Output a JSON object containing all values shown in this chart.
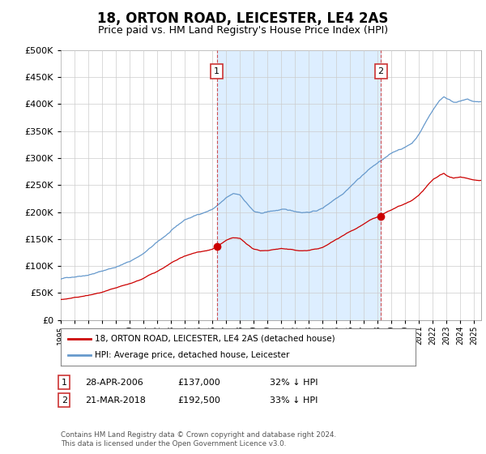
{
  "title": "18, ORTON ROAD, LEICESTER, LE4 2AS",
  "subtitle": "Price paid vs. HM Land Registry's House Price Index (HPI)",
  "title_fontsize": 12,
  "subtitle_fontsize": 9,
  "ylabel_values": [
    0,
    50000,
    100000,
    150000,
    200000,
    250000,
    300000,
    350000,
    400000,
    450000,
    500000
  ],
  "ylim": [
    0,
    500000
  ],
  "xlim_start": 1995.0,
  "xlim_end": 2025.5,
  "xtick_years": [
    1995,
    1996,
    1997,
    1998,
    1999,
    2000,
    2001,
    2002,
    2003,
    2004,
    2005,
    2006,
    2007,
    2008,
    2009,
    2010,
    2011,
    2012,
    2013,
    2014,
    2015,
    2016,
    2017,
    2018,
    2019,
    2020,
    2021,
    2022,
    2023,
    2024,
    2025
  ],
  "legend_entries": [
    "18, ORTON ROAD, LEICESTER, LE4 2AS (detached house)",
    "HPI: Average price, detached house, Leicester"
  ],
  "sale1_year": 2006.32,
  "sale1_price": 137000,
  "sale1_label": "1",
  "sale2_year": 2018.22,
  "sale2_price": 192500,
  "sale2_label": "2",
  "red_color": "#cc0000",
  "blue_color": "#6699cc",
  "shade_color": "#ddeeff",
  "vline_color": "#cc3333",
  "grid_color": "#cccccc",
  "bg_color": "#ffffff",
  "footer_text": "Contains HM Land Registry data © Crown copyright and database right 2024.\nThis data is licensed under the Open Government Licence v3.0.",
  "table_rows": [
    {
      "num": "1",
      "date": "28-APR-2006",
      "price": "£137,000",
      "pct": "32% ↓ HPI"
    },
    {
      "num": "2",
      "date": "21-MAR-2018",
      "price": "£192,500",
      "pct": "33% ↓ HPI"
    }
  ],
  "hpi_knots": [
    [
      1995.0,
      75000
    ],
    [
      1996.0,
      80000
    ],
    [
      1997.0,
      85000
    ],
    [
      1998.0,
      92000
    ],
    [
      1999.0,
      100000
    ],
    [
      2000.0,
      110000
    ],
    [
      2001.0,
      125000
    ],
    [
      2002.0,
      145000
    ],
    [
      2003.0,
      165000
    ],
    [
      2004.0,
      185000
    ],
    [
      2005.0,
      195000
    ],
    [
      2006.0,
      205000
    ],
    [
      2006.5,
      215000
    ],
    [
      2007.0,
      225000
    ],
    [
      2007.5,
      232000
    ],
    [
      2008.0,
      230000
    ],
    [
      2008.5,
      215000
    ],
    [
      2009.0,
      200000
    ],
    [
      2009.5,
      195000
    ],
    [
      2010.0,
      198000
    ],
    [
      2010.5,
      200000
    ],
    [
      2011.0,
      202000
    ],
    [
      2011.5,
      200000
    ],
    [
      2012.0,
      198000
    ],
    [
      2012.5,
      197000
    ],
    [
      2013.0,
      198000
    ],
    [
      2013.5,
      200000
    ],
    [
      2014.0,
      205000
    ],
    [
      2014.5,
      215000
    ],
    [
      2015.0,
      225000
    ],
    [
      2015.5,
      235000
    ],
    [
      2016.0,
      248000
    ],
    [
      2016.5,
      260000
    ],
    [
      2017.0,
      272000
    ],
    [
      2017.5,
      283000
    ],
    [
      2018.0,
      292000
    ],
    [
      2018.5,
      300000
    ],
    [
      2019.0,
      308000
    ],
    [
      2019.5,
      315000
    ],
    [
      2020.0,
      320000
    ],
    [
      2020.5,
      328000
    ],
    [
      2021.0,
      345000
    ],
    [
      2021.5,
      368000
    ],
    [
      2022.0,
      390000
    ],
    [
      2022.5,
      408000
    ],
    [
      2022.8,
      415000
    ],
    [
      2023.0,
      412000
    ],
    [
      2023.5,
      405000
    ],
    [
      2024.0,
      408000
    ],
    [
      2024.5,
      410000
    ],
    [
      2025.0,
      405000
    ]
  ],
  "red_knots": [
    [
      1995.0,
      45000
    ],
    [
      1996.0,
      48000
    ],
    [
      1997.0,
      52000
    ],
    [
      1998.0,
      57000
    ],
    [
      1999.0,
      63000
    ],
    [
      2000.0,
      70000
    ],
    [
      2001.0,
      80000
    ],
    [
      2002.0,
      93000
    ],
    [
      2003.0,
      108000
    ],
    [
      2004.0,
      120000
    ],
    [
      2005.0,
      127000
    ],
    [
      2006.0,
      132000
    ],
    [
      2006.32,
      137000
    ],
    [
      2007.0,
      148000
    ],
    [
      2007.5,
      152000
    ],
    [
      2008.0,
      150000
    ],
    [
      2008.5,
      140000
    ],
    [
      2009.0,
      130000
    ],
    [
      2009.5,
      127000
    ],
    [
      2010.0,
      128000
    ],
    [
      2010.5,
      130000
    ],
    [
      2011.0,
      132000
    ],
    [
      2011.5,
      130000
    ],
    [
      2012.0,
      128000
    ],
    [
      2012.5,
      127000
    ],
    [
      2013.0,
      128000
    ],
    [
      2013.5,
      130000
    ],
    [
      2014.0,
      133000
    ],
    [
      2014.5,
      140000
    ],
    [
      2015.0,
      148000
    ],
    [
      2015.5,
      155000
    ],
    [
      2016.0,
      163000
    ],
    [
      2016.5,
      170000
    ],
    [
      2017.0,
      178000
    ],
    [
      2017.5,
      185000
    ],
    [
      2018.0,
      190000
    ],
    [
      2018.22,
      192500
    ],
    [
      2018.5,
      196000
    ],
    [
      2019.0,
      202000
    ],
    [
      2019.5,
      208000
    ],
    [
      2020.0,
      212000
    ],
    [
      2020.5,
      218000
    ],
    [
      2021.0,
      228000
    ],
    [
      2021.5,
      242000
    ],
    [
      2022.0,
      255000
    ],
    [
      2022.5,
      263000
    ],
    [
      2022.8,
      266000
    ],
    [
      2023.0,
      262000
    ],
    [
      2023.5,
      258000
    ],
    [
      2024.0,
      260000
    ],
    [
      2024.5,
      258000
    ],
    [
      2025.0,
      255000
    ]
  ]
}
